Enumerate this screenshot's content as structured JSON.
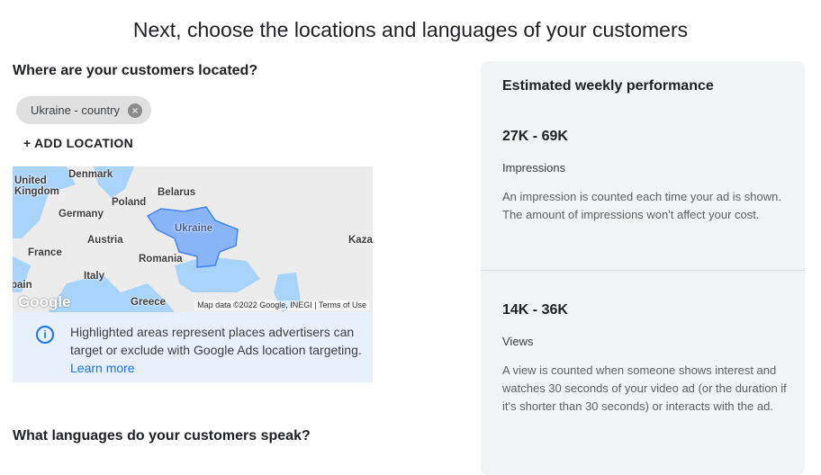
{
  "title": "Next, choose the locations and languages of your customers",
  "locations": {
    "question": "Where are your customers located?",
    "chips": [
      {
        "label": "Ukraine - country",
        "remove_icon": "close-circle-icon"
      }
    ],
    "add_label": "+ ADD LOCATION"
  },
  "map": {
    "labels": [
      "United Kingdom",
      "Denmark",
      "Belarus",
      "Poland",
      "Germany",
      "Ukraine",
      "Austria",
      "Kaza",
      "France",
      "Romania",
      "Italy",
      "pain",
      "Greece"
    ],
    "logo": "Google",
    "attribution": "Map data ©2022 Google, INEGI",
    "terms": "Terms of Use",
    "highlight_color": "#8ab4f8"
  },
  "info": {
    "icon": "info-icon",
    "text": "Highlighted areas represent places advertisers can target or exclude with Google Ads location targeting.",
    "link": "Learn more"
  },
  "languages": {
    "question": "What languages do your customers speak?"
  },
  "performance": {
    "heading": "Estimated weekly performance",
    "metrics": [
      {
        "range": "27K - 69K",
        "label": "Impressions",
        "description": "An impression is counted each time your ad is shown. The amount of impressions won't affect your cost."
      },
      {
        "range": "14K - 36K",
        "label": "Views",
        "description": "A view is counted when someone shows interest and watches 30 seconds of your video ad (or the duration if it's shorter than 30 seconds) or interacts with the ad."
      }
    ]
  }
}
